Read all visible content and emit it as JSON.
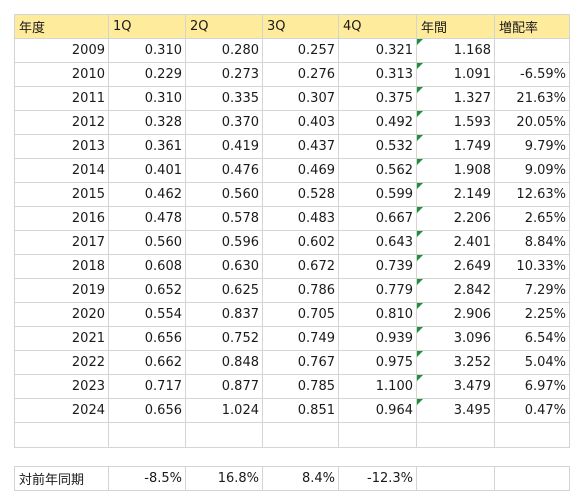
{
  "headers": [
    "年度",
    "1Q",
    "2Q",
    "3Q",
    "4Q",
    "年間",
    "増配率"
  ],
  "rows": [
    {
      "year": "2009",
      "q1": "0.310",
      "q2": "0.280",
      "q3": "0.257",
      "q4": "0.321",
      "annual": "1.168",
      "growth": ""
    },
    {
      "year": "2010",
      "q1": "0.229",
      "q2": "0.273",
      "q3": "0.276",
      "q4": "0.313",
      "annual": "1.091",
      "growth": "-6.59%"
    },
    {
      "year": "2011",
      "q1": "0.310",
      "q2": "0.335",
      "q3": "0.307",
      "q4": "0.375",
      "annual": "1.327",
      "growth": "21.63%"
    },
    {
      "year": "2012",
      "q1": "0.328",
      "q2": "0.370",
      "q3": "0.403",
      "q4": "0.492",
      "annual": "1.593",
      "growth": "20.05%"
    },
    {
      "year": "2013",
      "q1": "0.361",
      "q2": "0.419",
      "q3": "0.437",
      "q4": "0.532",
      "annual": "1.749",
      "growth": "9.79%"
    },
    {
      "year": "2014",
      "q1": "0.401",
      "q2": "0.476",
      "q3": "0.469",
      "q4": "0.562",
      "annual": "1.908",
      "growth": "9.09%"
    },
    {
      "year": "2015",
      "q1": "0.462",
      "q2": "0.560",
      "q3": "0.528",
      "q4": "0.599",
      "annual": "2.149",
      "growth": "12.63%"
    },
    {
      "year": "2016",
      "q1": "0.478",
      "q2": "0.578",
      "q3": "0.483",
      "q4": "0.667",
      "annual": "2.206",
      "growth": "2.65%"
    },
    {
      "year": "2017",
      "q1": "0.560",
      "q2": "0.596",
      "q3": "0.602",
      "q4": "0.643",
      "annual": "2.401",
      "growth": "8.84%"
    },
    {
      "year": "2018",
      "q1": "0.608",
      "q2": "0.630",
      "q3": "0.672",
      "q4": "0.739",
      "annual": "2.649",
      "growth": "10.33%"
    },
    {
      "year": "2019",
      "q1": "0.652",
      "q2": "0.625",
      "q3": "0.786",
      "q4": "0.779",
      "annual": "2.842",
      "growth": "7.29%"
    },
    {
      "year": "2020",
      "q1": "0.554",
      "q2": "0.837",
      "q3": "0.705",
      "q4": "0.810",
      "annual": "2.906",
      "growth": "2.25%"
    },
    {
      "year": "2021",
      "q1": "0.656",
      "q2": "0.752",
      "q3": "0.749",
      "q4": "0.939",
      "annual": "3.096",
      "growth": "6.54%"
    },
    {
      "year": "2022",
      "q1": "0.662",
      "q2": "0.848",
      "q3": "0.767",
      "q4": "0.975",
      "annual": "3.252",
      "growth": "5.04%"
    },
    {
      "year": "2023",
      "q1": "0.717",
      "q2": "0.877",
      "q3": "0.785",
      "q4": "1.100",
      "annual": "3.479",
      "growth": "6.97%"
    },
    {
      "year": "2024",
      "q1": "0.656",
      "q2": "1.024",
      "q3": "0.851",
      "q4": "0.964",
      "annual": "3.495",
      "growth": "0.47%"
    }
  ],
  "summary": {
    "label": "対前年同期",
    "q1": "-8.5%",
    "q2": "16.8%",
    "q3": "8.4%",
    "q4": "-12.3%",
    "annual": "",
    "growth": ""
  },
  "colors": {
    "header_bg": "#ffeb9c",
    "grid": "#d4d4d4",
    "indicator": "#1e8e3e"
  }
}
